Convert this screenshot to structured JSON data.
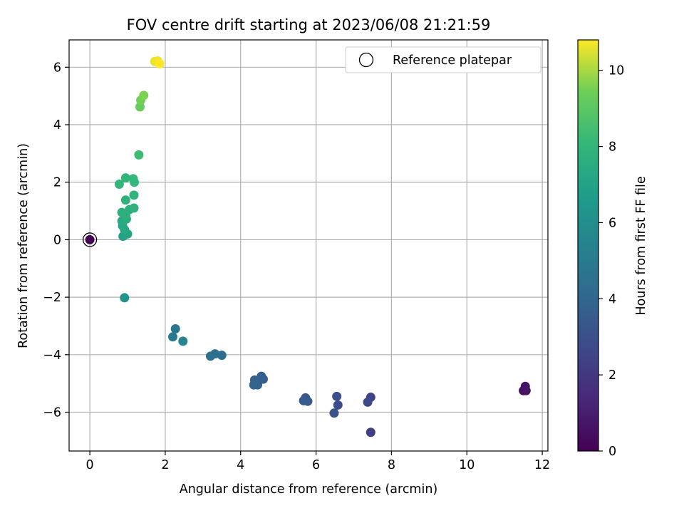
{
  "chart_data": {
    "type": "scatter",
    "title": "FOV centre drift starting at 2023/06/08 21:21:59",
    "xlabel": "Angular distance from reference (arcmin)",
    "ylabel": "Rotation from reference (arcmin)",
    "xlim": [
      -0.55,
      12.15
    ],
    "ylim": [
      -7.35,
      6.95
    ],
    "xticks": [
      0,
      2,
      4,
      6,
      8,
      10,
      12
    ],
    "yticks": [
      -6,
      -4,
      -2,
      0,
      2,
      4,
      6
    ],
    "grid": true,
    "legend": {
      "position": "top-right",
      "entries": [
        "Reference platepar"
      ]
    },
    "reference_point": {
      "x": 0,
      "y": 0,
      "hours": 0
    },
    "colorbar": {
      "label": "Hours from first FF file",
      "range": [
        0,
        10.8
      ],
      "ticks": [
        0,
        2,
        4,
        6,
        8,
        10
      ],
      "colormap": "viridis"
    },
    "points": [
      {
        "x": 0,
        "y": 0,
        "hours": 0
      },
      {
        "x": 11.5,
        "y": -5.25,
        "hours": 0.5
      },
      {
        "x": 11.55,
        "y": -5.1,
        "hours": 0.6
      },
      {
        "x": 11.57,
        "y": -5.25,
        "hours": 0.7
      },
      {
        "x": 7.45,
        "y": -6.7,
        "hours": 2.3
      },
      {
        "x": 7.45,
        "y": -5.48,
        "hours": 2.5
      },
      {
        "x": 7.37,
        "y": -5.65,
        "hours": 2.7
      },
      {
        "x": 6.58,
        "y": -5.75,
        "hours": 2.9
      },
      {
        "x": 6.55,
        "y": -5.45,
        "hours": 3.0
      },
      {
        "x": 6.48,
        "y": -6.03,
        "hours": 3.1
      },
      {
        "x": 5.72,
        "y": -5.5,
        "hours": 3.3
      },
      {
        "x": 5.78,
        "y": -5.62,
        "hours": 3.4
      },
      {
        "x": 5.67,
        "y": -5.6,
        "hours": 3.5
      },
      {
        "x": 4.55,
        "y": -4.75,
        "hours": 3.6
      },
      {
        "x": 4.6,
        "y": -4.85,
        "hours": 3.7
      },
      {
        "x": 4.37,
        "y": -4.88,
        "hours": 3.8
      },
      {
        "x": 4.45,
        "y": -5.05,
        "hours": 3.85
      },
      {
        "x": 4.35,
        "y": -5.05,
        "hours": 3.9
      },
      {
        "x": 3.5,
        "y": -4.02,
        "hours": 4.3
      },
      {
        "x": 3.32,
        "y": -3.97,
        "hours": 4.4
      },
      {
        "x": 3.2,
        "y": -4.05,
        "hours": 4.5
      },
      {
        "x": 2.27,
        "y": -3.1,
        "hours": 4.8
      },
      {
        "x": 2.2,
        "y": -3.38,
        "hours": 4.95
      },
      {
        "x": 2.47,
        "y": -3.53,
        "hours": 5.5
      },
      {
        "x": 0.92,
        "y": -2.02,
        "hours": 6.2
      },
      {
        "x": 0.88,
        "y": 0.12,
        "hours": 7.0
      },
      {
        "x": 1.0,
        "y": 0.2,
        "hours": 7.1
      },
      {
        "x": 0.87,
        "y": 0.48,
        "hours": 7.2
      },
      {
        "x": 0.92,
        "y": 0.35,
        "hours": 7.3
      },
      {
        "x": 0.85,
        "y": 0.65,
        "hours": 7.4
      },
      {
        "x": 0.97,
        "y": 0.72,
        "hours": 7.5
      },
      {
        "x": 1.05,
        "y": 1.05,
        "hours": 7.6
      },
      {
        "x": 0.95,
        "y": 0.85,
        "hours": 7.65
      },
      {
        "x": 0.85,
        "y": 0.95,
        "hours": 7.7
      },
      {
        "x": 1.17,
        "y": 1.1,
        "hours": 7.8
      },
      {
        "x": 0.95,
        "y": 1.38,
        "hours": 7.85
      },
      {
        "x": 1.17,
        "y": 1.55,
        "hours": 7.9
      },
      {
        "x": 0.78,
        "y": 1.93,
        "hours": 7.95
      },
      {
        "x": 0.95,
        "y": 2.15,
        "hours": 8.0
      },
      {
        "x": 1.15,
        "y": 2.12,
        "hours": 8.05
      },
      {
        "x": 1.18,
        "y": 2.0,
        "hours": 8.1
      },
      {
        "x": 1.3,
        "y": 2.95,
        "hours": 8.3
      },
      {
        "x": 1.33,
        "y": 4.62,
        "hours": 9.3
      },
      {
        "x": 1.35,
        "y": 4.85,
        "hours": 9.5
      },
      {
        "x": 1.43,
        "y": 5.02,
        "hours": 9.6
      },
      {
        "x": 1.72,
        "y": 6.2,
        "hours": 10.6
      },
      {
        "x": 1.8,
        "y": 6.22,
        "hours": 10.7
      },
      {
        "x": 1.85,
        "y": 6.12,
        "hours": 10.8
      }
    ]
  }
}
